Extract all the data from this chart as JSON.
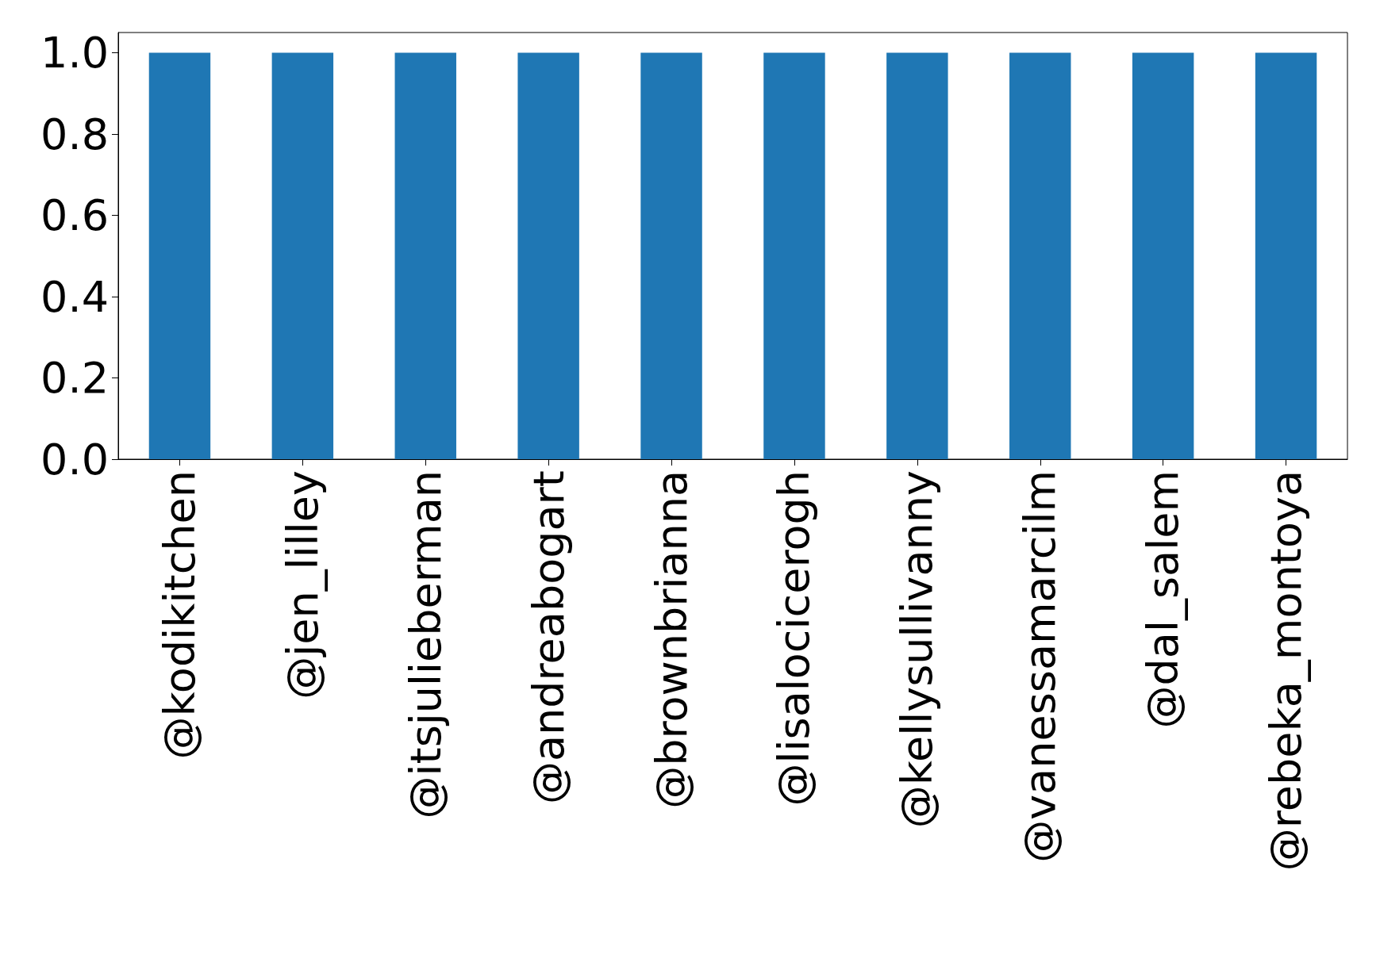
{
  "chart_data": {
    "type": "bar",
    "categories": [
      "@kodikitchen",
      "@jen_lilley",
      "@itsjulieberman",
      "@andreabogart",
      "@brownbrianna",
      "@lisalocicerogh",
      "@kellysullivanny",
      "@vanessamarcilm",
      "@dal_salem",
      "@rebeka_montoya"
    ],
    "values": [
      1,
      1,
      1,
      1,
      1,
      1,
      1,
      1,
      1,
      1
    ],
    "color": "#1f77b4",
    "ylim": [
      0,
      1.05
    ],
    "yticks": [
      {
        "value": 0,
        "label": "0.0"
      },
      {
        "value": 0.2,
        "label": "0.2"
      },
      {
        "value": 0.4,
        "label": "0.4"
      },
      {
        "value": 0.6,
        "label": "0.6"
      },
      {
        "value": 0.8,
        "label": "0.8"
      },
      {
        "value": 1,
        "label": "1.0"
      }
    ],
    "grid": false
  }
}
